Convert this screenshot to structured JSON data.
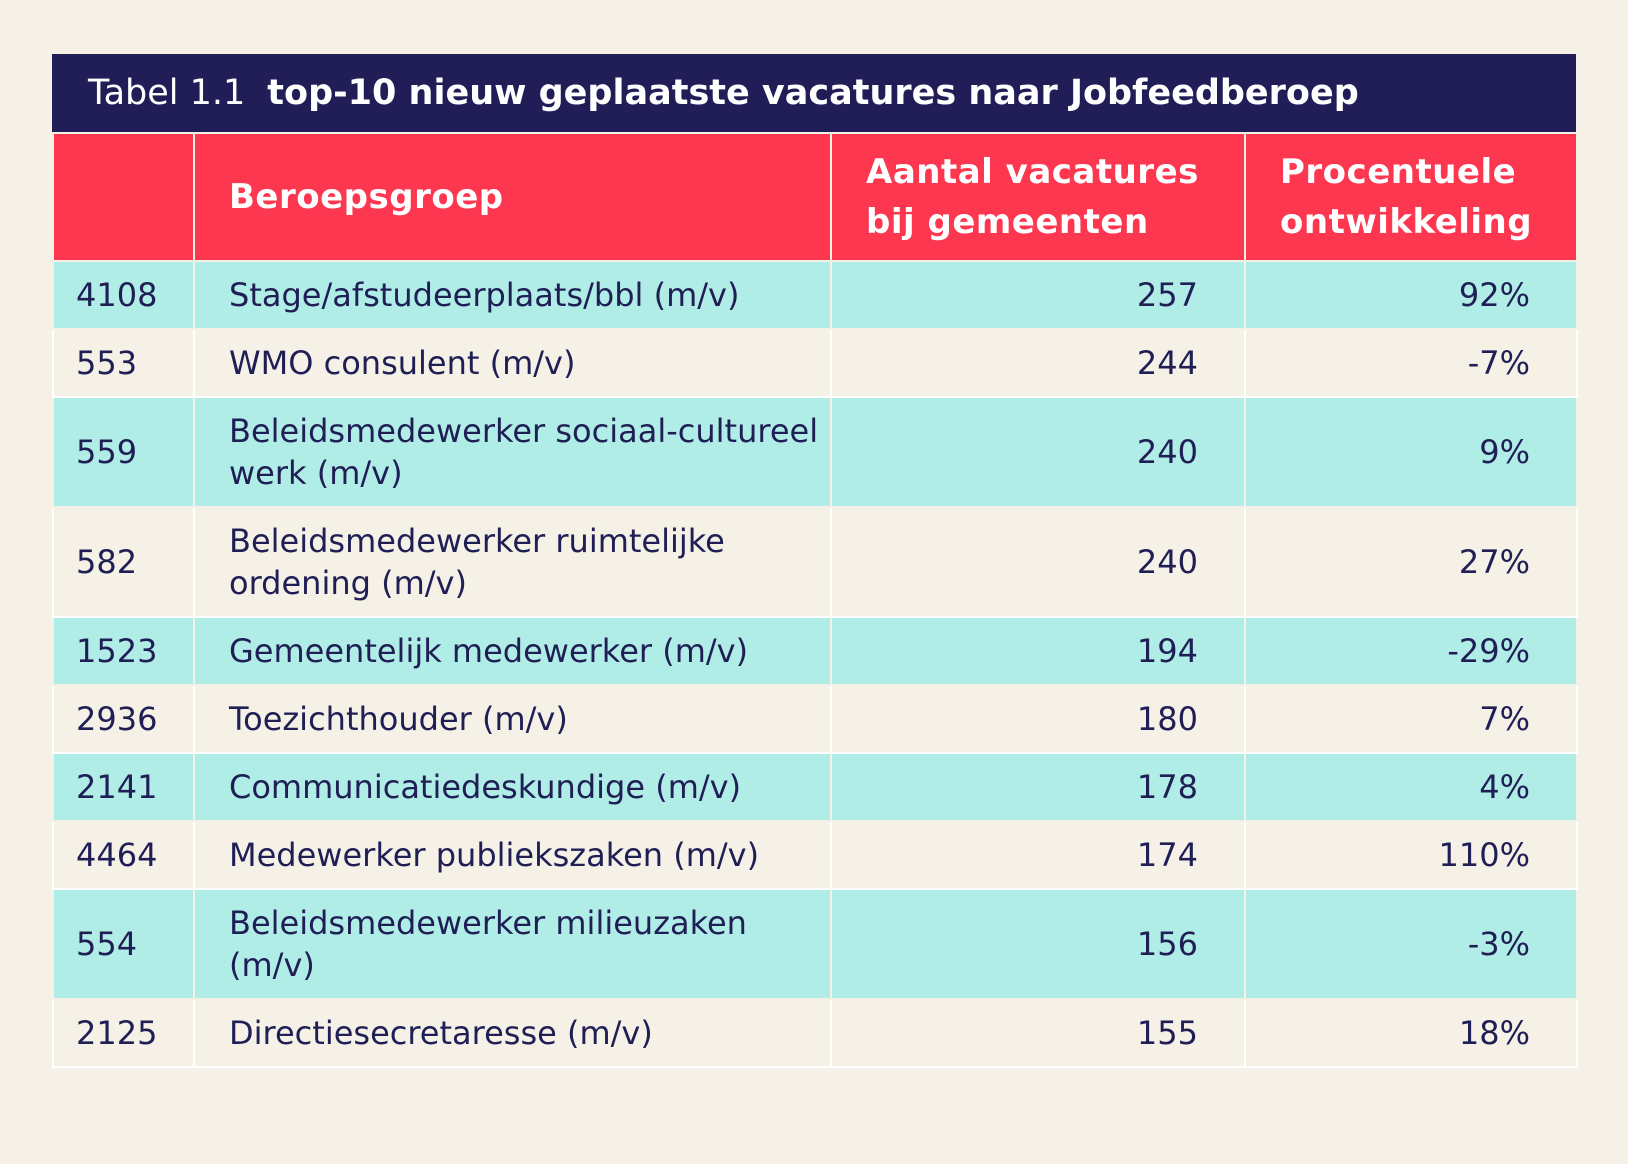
{
  "title": {
    "prefix": "Tabel 1.1",
    "text": "top-10 nieuw geplaatste vacatures naar Jobfeedberoep"
  },
  "headers": {
    "code": "",
    "name": "Beroepsgroep",
    "count": "Aantal vacatures bij gemeenten",
    "pct": "Procentuele ontwikkeling"
  },
  "rows": [
    {
      "code": "4108",
      "name": "Stage/afstudeerplaats/bbl (m/v)",
      "count": "257",
      "pct": "92%"
    },
    {
      "code": "553",
      "name": "WMO consulent (m/v)",
      "count": "244",
      "pct": "-7%"
    },
    {
      "code": "559",
      "name": "Beleidsmedewerker sociaal-cultureel werk (m/v)",
      "count": "240",
      "pct": "9%"
    },
    {
      "code": "582",
      "name": "Beleidsmedewerker ruimtelijke ordening (m/v)",
      "count": "240",
      "pct": "27%"
    },
    {
      "code": "1523",
      "name": "Gemeentelijk medewerker (m/v)",
      "count": "194",
      "pct": "-29%"
    },
    {
      "code": "2936",
      "name": "Toezichthouder (m/v)",
      "count": "180",
      "pct": "7%"
    },
    {
      "code": "2141",
      "name": "Communicatiedeskundige (m/v)",
      "count": "178",
      "pct": "4%"
    },
    {
      "code": "4464",
      "name": "Medewerker publiekszaken (m/v)",
      "count": "174",
      "pct": "110%"
    },
    {
      "code": "554",
      "name": "Beleidsmedewerker milieuzaken (m/v)",
      "count": "156",
      "pct": "-3%"
    },
    {
      "code": "2125",
      "name": "Directiesecretaresse (m/v)",
      "count": "155",
      "pct": "18%"
    }
  ],
  "colors": {
    "title_bg": "#211d57",
    "header_bg": "#fd3750",
    "row_alt_bg": "#b1ede7",
    "page_bg": "#f5f1e6"
  }
}
